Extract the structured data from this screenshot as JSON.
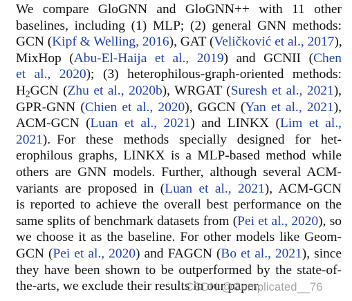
{
  "paragraph": {
    "lines": [
      [
        "We compare GloGNN and GloGNN++ with 11 other"
      ],
      [
        "baselines, including (1) MLP; (2) general GNN methods:"
      ],
      [
        "GCN (",
        "Kipf & Welling, 2016",
        "), GAT (",
        "Veličković et al., 2017",
        "),"
      ],
      [
        "MixHop (",
        "Abu-El-Haija et al., 2019",
        ") and GCNII (",
        "Chen"
      ],
      [
        "et al., 2020",
        "); (3) heterophilous-graph-oriented methods:"
      ],
      [
        "H",
        "2",
        "GCN (",
        "Zhu et al., 2020b",
        "), WRGAT (",
        "Suresh et al., 2021",
        "),"
      ],
      [
        "GPR-GNN (",
        "Chien et al., 2020",
        "), GGCN (",
        "Yan et al., 2021",
        "),"
      ],
      [
        "ACM-GCN (",
        "Luan et al., 2021",
        ") and LINKX (",
        "Lim et al.,"
      ],
      [
        "2021",
        ").",
        "For these methods specially designed for het-"
      ],
      [
        "erophilous graphs, LINKX is a MLP-based method while"
      ],
      [
        "others are GNN models. Further, although several ACM-"
      ],
      [
        "variants are proposed in (",
        "Luan et al., 2021",
        "), ACM-GCN"
      ],
      [
        "is reported to achieve the overall best performance on the"
      ],
      [
        "same splits of benchmark datasets from (",
        "Pei et al., 2020",
        "), so"
      ],
      [
        "we choose it as the baseline. For other models like Geom-"
      ],
      [
        "GCN (",
        "Pei et al., 2020",
        ") and FAGCN (",
        "Bo et al., 2021",
        "), since"
      ],
      [
        "they have been shown to be outperformed by the state-of-"
      ],
      [
        "the-arts, we exclude their results in our paper."
      ]
    ]
  },
  "watermark": {
    "text": "CSDN @Complicated__76"
  },
  "colors": {
    "text": "#111111",
    "citation": "#1f3fae",
    "watermark": "#8c8c8c"
  }
}
